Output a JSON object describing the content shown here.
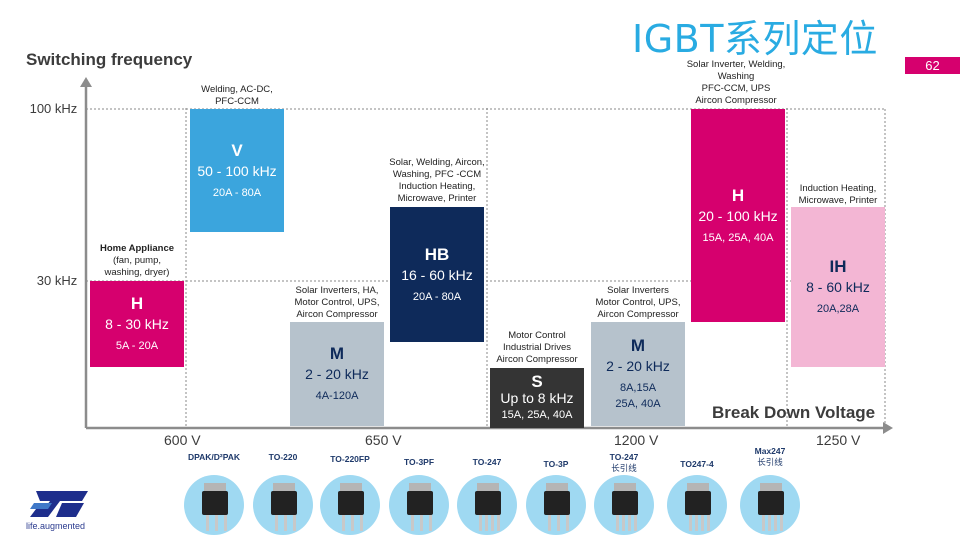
{
  "page": {
    "title": "IGBT系列定位",
    "page_number": "62"
  },
  "colors": {
    "V": "#3ba5dd",
    "H_low": "#d6006e",
    "M": "#b6c2cc",
    "HB": "#0e2a5a",
    "S": "#343434",
    "H_high": "#d6006e",
    "IH": "#f3b6d4",
    "accent_title": "#29abe2"
  },
  "chart_data": {
    "type": "bar",
    "title": "IGBT系列定位",
    "ylabel": "Switching frequency",
    "xlabel": "Break Down Voltage",
    "x_ticks": [
      "600 V",
      "650 V",
      "1200 V",
      "1250 V"
    ],
    "y_ticks": [
      "100 kHz",
      "30 kHz"
    ],
    "grid": true,
    "series": [
      {
        "code": "V",
        "freq": "50 - 100 kHz",
        "current": "20A - 80A",
        "voltage": "600 V",
        "freq_min_khz": 50,
        "freq_max_khz": 100,
        "color_key": "V",
        "annotation": [
          "Welding, AC-DC,",
          "PFC-CCM"
        ],
        "annotation_head": ""
      },
      {
        "code": "H",
        "freq": "8 - 30 kHz",
        "current": "5A - 20A",
        "voltage": "600 V",
        "freq_min_khz": 8,
        "freq_max_khz": 30,
        "color_key": "H_low",
        "annotation": [
          "(fan, pump,",
          "washing, dryer)"
        ],
        "annotation_head": "Home Appliance"
      },
      {
        "code": "M",
        "freq": "2 - 20 kHz",
        "current": "4A-120A",
        "voltage": "650 V",
        "freq_min_khz": 2,
        "freq_max_khz": 20,
        "color_key": "M",
        "annotation": [
          "Solar Inverters,  HA,",
          "Motor Control, UPS,",
          "Aircon Compressor"
        ],
        "annotation_head": ""
      },
      {
        "code": "HB",
        "freq": "16 - 60 kHz",
        "current": "20A - 80A",
        "voltage": "650 V",
        "freq_min_khz": 16,
        "freq_max_khz": 60,
        "color_key": "HB",
        "annotation": [
          "Solar, Welding, Aircon,",
          "Washing, PFC -CCM",
          "Induction Heating,",
          "Microwave, Printer"
        ],
        "annotation_head": ""
      },
      {
        "code": "S",
        "freq": "Up to 8 kHz",
        "current": "15A, 25A, 40A",
        "voltage": "1200 V",
        "freq_min_khz": 0,
        "freq_max_khz": 8,
        "color_key": "S",
        "annotation": [
          "Motor Control",
          "Industrial Drives",
          "Aircon Compressor"
        ],
        "annotation_head": ""
      },
      {
        "code": "M",
        "freq": "2 - 20 kHz",
        "current": "8A,15A\n25A, 40A",
        "current_line1": "8A,15A",
        "current_line2": "25A, 40A",
        "voltage": "1200 V",
        "freq_min_khz": 2,
        "freq_max_khz": 20,
        "color_key": "M",
        "annotation": [
          "Solar Inverters",
          "Motor Control, UPS,",
          "Aircon Compressor"
        ],
        "annotation_head": ""
      },
      {
        "code": "H",
        "freq": "20 - 100 kHz",
        "current": "15A, 25A, 40A",
        "voltage": "1200 V",
        "freq_min_khz": 20,
        "freq_max_khz": 100,
        "color_key": "H_high",
        "annotation": [
          "Solar Inverter, Welding,",
          "Washing",
          "PFC-CCM, UPS",
          "Aircon Compressor"
        ],
        "annotation_head": ""
      },
      {
        "code": "IH",
        "freq": "8 - 60 kHz",
        "current": "20A,28A",
        "voltage": "1250 V",
        "freq_min_khz": 8,
        "freq_max_khz": 60,
        "color_key": "IH",
        "annotation": [
          "Induction Heating,",
          "Microwave, Printer"
        ],
        "annotation_head": ""
      }
    ]
  },
  "packages": [
    {
      "label": "DPAK/D²PAK",
      "label2": "",
      "icon": "dpak-package-icon"
    },
    {
      "label": "TO-220",
      "label2": "",
      "icon": "to220-package-icon"
    },
    {
      "label": "TO-220FP",
      "label2": "",
      "icon": "to220fp-package-icon"
    },
    {
      "label": "TO-3PF",
      "label2": "",
      "icon": "to3pf-package-icon"
    },
    {
      "label": "TO-247",
      "label2": "",
      "icon": "to247-package-icon"
    },
    {
      "label": "TO-3P",
      "label2": "",
      "icon": "to3p-package-icon"
    },
    {
      "label": "TO-247",
      "label2": "长引线",
      "icon": "to247-long-lead-package-icon"
    },
    {
      "label": "TO247-4",
      "label2": "",
      "icon": "to247-4-package-icon"
    },
    {
      "label": "Max247",
      "label2": "长引线",
      "icon": "max247-package-icon"
    }
  ],
  "logo": {
    "tagline": "life.augmented",
    "icon": "st-logo-icon"
  }
}
